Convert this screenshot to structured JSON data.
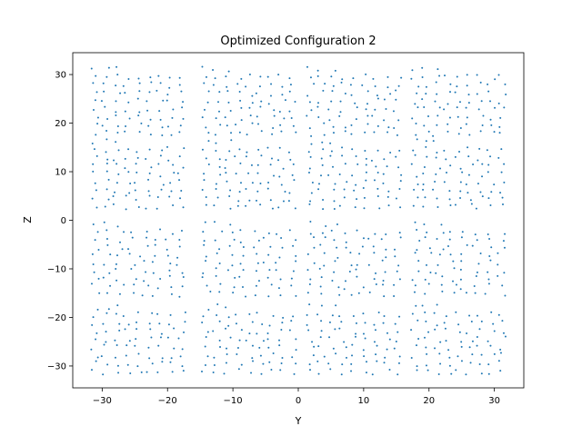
{
  "chart_data": {
    "type": "scatter",
    "title": "Optimized Configuration 2",
    "xlabel": "Y",
    "ylabel": "Z",
    "xlim": [
      -34.5,
      34.5
    ],
    "ylim": [
      -34.5,
      34.5
    ],
    "xticks": [
      -30,
      -20,
      -10,
      0,
      10,
      20,
      30
    ],
    "yticks": [
      -30,
      -20,
      -10,
      0,
      10,
      20,
      30
    ],
    "grid": false,
    "marker_color": "#1f77b4",
    "series": [
      {
        "blocks": [
          {
            "y_range": [
              -32,
              -17
            ],
            "z_range": [
              17,
              32
            ],
            "count": 75
          },
          {
            "y_range": [
              -32,
              -17
            ],
            "z_range": [
              2,
              17
            ],
            "count": 75
          },
          {
            "y_range": [
              -32,
              -17
            ],
            "z_range": [
              -16,
              0
            ],
            "count": 75
          },
          {
            "y_range": [
              -32,
              -17
            ],
            "z_range": [
              -32,
              -17
            ],
            "count": 75
          },
          {
            "y_range": [
              -15,
              0
            ],
            "z_range": [
              17,
              32
            ],
            "count": 75
          },
          {
            "y_range": [
              -15,
              0
            ],
            "z_range": [
              2,
              17
            ],
            "count": 75
          },
          {
            "y_range": [
              -15,
              0
            ],
            "z_range": [
              -16,
              0
            ],
            "count": 75
          },
          {
            "y_range": [
              -15,
              0
            ],
            "z_range": [
              -32,
              -17
            ],
            "count": 75
          },
          {
            "y_range": [
              1,
              16
            ],
            "z_range": [
              17,
              32
            ],
            "count": 75
          },
          {
            "y_range": [
              1,
              16
            ],
            "z_range": [
              2,
              17
            ],
            "count": 75
          },
          {
            "y_range": [
              1,
              16
            ],
            "z_range": [
              -16,
              0
            ],
            "count": 75
          },
          {
            "y_range": [
              1,
              16
            ],
            "z_range": [
              -32,
              -17
            ],
            "count": 75
          },
          {
            "y_range": [
              17,
              32
            ],
            "z_range": [
              17,
              32
            ],
            "count": 75
          },
          {
            "y_range": [
              17,
              32
            ],
            "z_range": [
              2,
              17
            ],
            "count": 75
          },
          {
            "y_range": [
              17,
              32
            ],
            "z_range": [
              -16,
              0
            ],
            "count": 75
          },
          {
            "y_range": [
              17,
              32
            ],
            "z_range": [
              -32,
              -17
            ],
            "count": 75
          }
        ]
      }
    ]
  }
}
